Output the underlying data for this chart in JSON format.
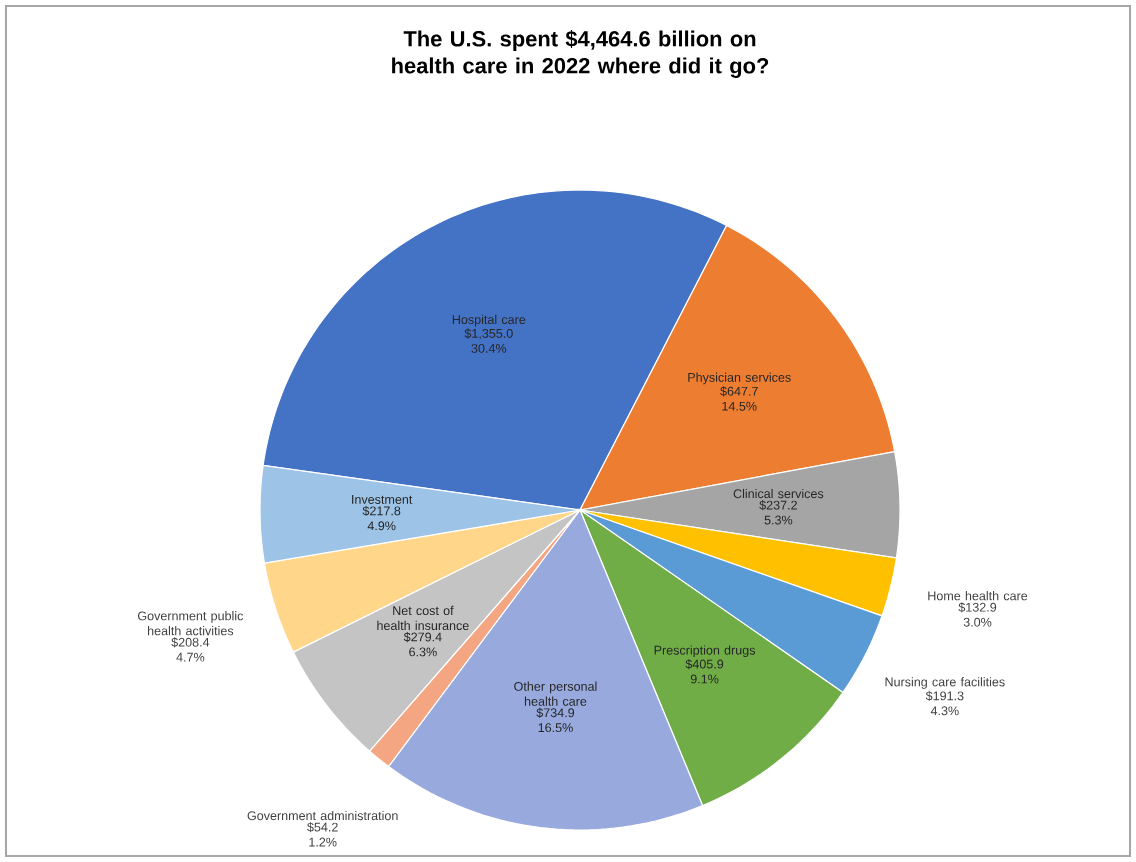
{
  "chart_data": {
    "type": "pie",
    "title": "The U.S. spent $4,464.6 billion on health care in 2022 where did it go?",
    "categories": [
      "Hospital care",
      "Physician services",
      "Clinical services",
      "Home health care",
      "Nursing care facilities",
      "Prescription drugs",
      "Other personal health care",
      "Government administration",
      "Net cost of health insurance",
      "Government public health activities",
      "Investment"
    ],
    "values": [
      1355.0,
      647.7,
      237.2,
      132.9,
      191.3,
      405.9,
      734.9,
      54.2,
      279.4,
      208.4,
      217.8
    ],
    "value_labels": [
      "$1,355.0 30.4%",
      "$647.7 14.5%",
      "$237.2 5.3%",
      "$132.9 3.0%",
      "$191.3 4.3%",
      "$405.9 9.1%",
      "$734.9 16.5%",
      "$54.2 1.2%",
      "$279.4 6.3%",
      "$208.4 4.7%",
      "$217.8 4.9%"
    ],
    "colors": [
      "#4472c4",
      "#ed7d31",
      "#a5a5a5",
      "#ffc000",
      "#5b9bd5",
      "#70ad47",
      "#98a9dd",
      "#f4a582",
      "#c4c4c4",
      "#ffd68a",
      "#9dc3e6"
    ]
  }
}
